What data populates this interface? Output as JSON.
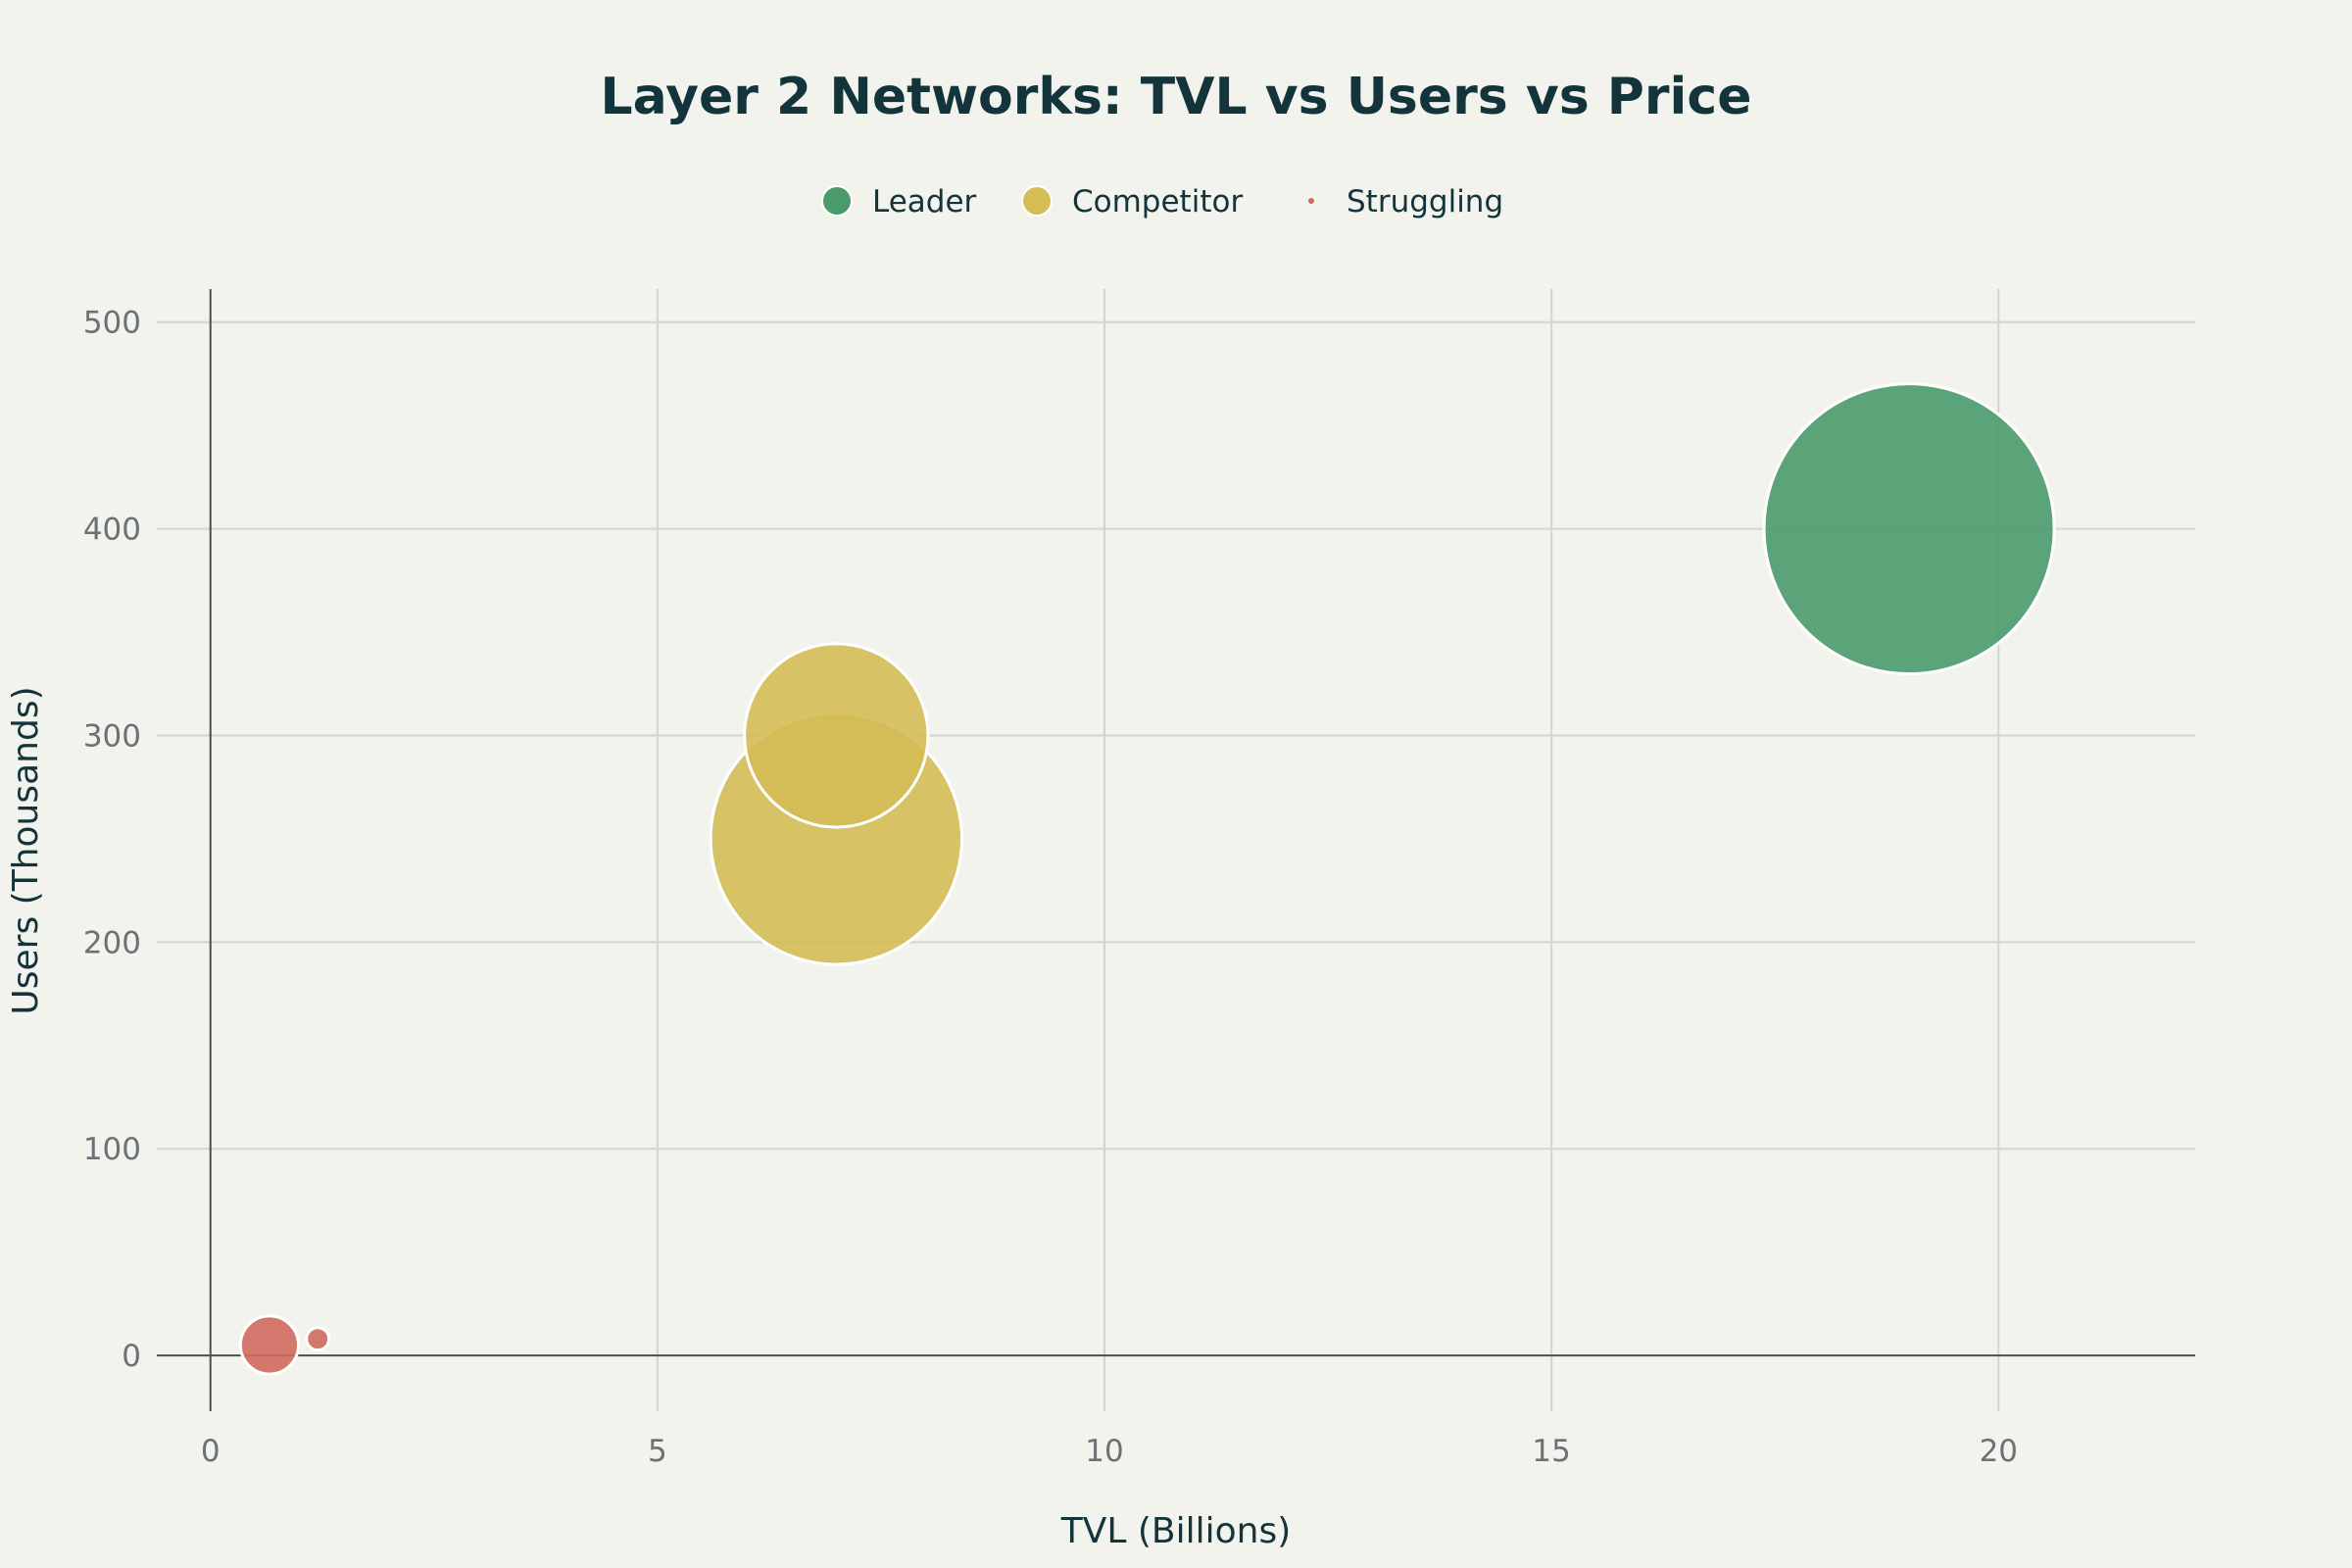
{
  "chart_data": {
    "type": "scatter",
    "title": "Layer 2 Networks: TVL vs Users vs Price",
    "xlabel": "TVL (Billions)",
    "ylabel": "Users (Thousands)",
    "xlim": [
      -0.6,
      22.2
    ],
    "ylim": [
      -27,
      516
    ],
    "x_ticks": [
      0,
      5,
      10,
      15,
      20
    ],
    "y_ticks": [
      0,
      100,
      200,
      300,
      400,
      500
    ],
    "grid": true,
    "legend_position": "top-center",
    "series": [
      {
        "name": "Leader",
        "color": "#4a9a6a",
        "points": [
          {
            "x": 19.0,
            "y": 400,
            "size": 100
          }
        ]
      },
      {
        "name": "Competitor",
        "color": "#d4bd55",
        "points": [
          {
            "x": 7.0,
            "y": 250,
            "size": 75
          },
          {
            "x": 7.0,
            "y": 300,
            "size": 40
          }
        ]
      },
      {
        "name": "Struggling",
        "color": "#d06a5e",
        "points": [
          {
            "x": 0.66,
            "y": 5,
            "size": 4
          },
          {
            "x": 1.2,
            "y": 8,
            "size": 0.6
          }
        ]
      }
    ]
  }
}
